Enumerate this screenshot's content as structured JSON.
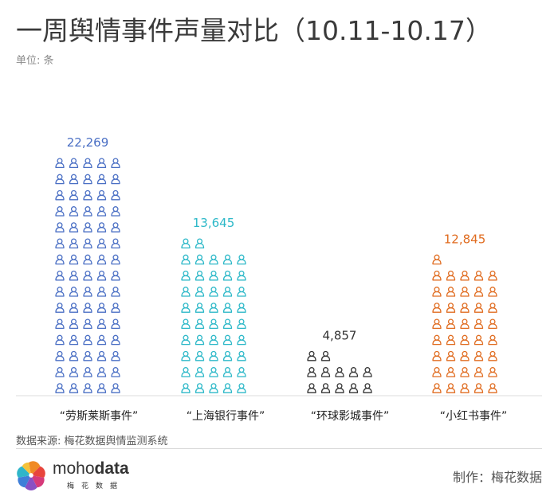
{
  "header": {
    "title": "一周舆情事件声量对比（10.11-10.17）",
    "unit": "单位: 条"
  },
  "chart_data": {
    "type": "pictorial-bar",
    "title": "一周舆情事件声量对比（10.11-10.17）",
    "unit": "单位: 条",
    "categories": [
      "“劳斯莱斯事件”",
      "“上海银行事件”",
      "“环球影城事件”",
      "“小红书事件”"
    ],
    "values": [
      22269,
      13645,
      4857,
      12845
    ],
    "value_labels": [
      "22,269",
      "13,645",
      "4,857",
      "12,845"
    ],
    "icon_counts": [
      75,
      47,
      12,
      41
    ],
    "colors": [
      "#4a6fc4",
      "#2cb8c8",
      "#333333",
      "#e06c20"
    ]
  },
  "footer": {
    "source": "数据来源: 梅花数据舆情监测系统",
    "brand_name_light": "moho",
    "brand_name_bold": "data",
    "brand_sub": "梅花数据",
    "maker": "制作：梅花数据"
  },
  "icons": {
    "unit_icon": "person-icon",
    "brand_icon": "pinwheel-logo-icon"
  }
}
